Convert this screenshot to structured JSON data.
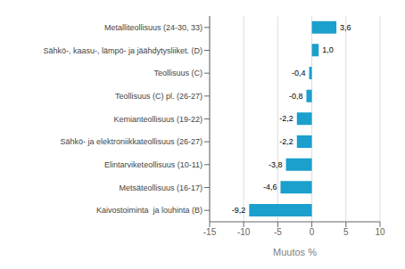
{
  "chart_data": {
    "type": "bar",
    "orientation": "horizontal",
    "categories": [
      "Kaivostoiminta  ja louhinta (B)",
      "Metsäteollisuus (16-17)",
      "Elintarviketeollisuus (10-11)",
      "Sähkö- ja elektroniikkateollisuus (26-27)",
      "Kemianteollisuus (19-22)",
      "Teollisuus (C) pl. (26-27)",
      "Teollisuus (C)",
      "Sähkö-, kaasu-, lämpö- ja jäähdytysliiket. (D)",
      "Metalliteollisuus (24-30, 33)"
    ],
    "values": [
      -9.2,
      -4.6,
      -3.8,
      -2.2,
      -2.2,
      -0.8,
      -0.4,
      1.0,
      3.6
    ],
    "value_labels": [
      "-9,2",
      "-4,6",
      "-3,8",
      "-2,2",
      "-2,2",
      "-0,8",
      "-0,4",
      "1,0",
      "3,6"
    ],
    "data_labels": true,
    "color": "#1b9fcc",
    "xlim": [
      -15,
      10
    ],
    "xticks": [
      -15,
      -10,
      -5,
      0,
      5,
      10
    ],
    "xlabel": "Muutos %",
    "grid": true
  }
}
